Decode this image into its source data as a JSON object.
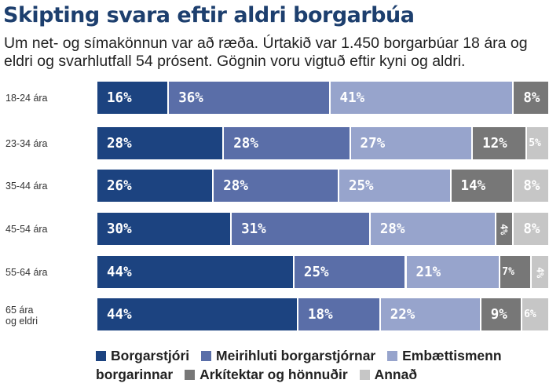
{
  "title": "Skipting svara eftir aldri borgarbúa",
  "subtitle": "Um net- og símakönnun var að ræða. Úrtakið var 1.450 borgarbúar 18 ára og eldri og svarhlutfall 54 prósent. Gögnin voru vigtuð eftir kyni og aldri.",
  "colors": {
    "Borgarstjóri": "#1c4380",
    "Meirihluti borgarstjórnar": "#5a6ea8",
    "Embættismenn borgarinnar": "#97a4cc",
    "Arkítektar og hönnuðir": "#777777",
    "Annað": "#c6c6c6"
  },
  "chart_data": {
    "type": "bar",
    "orientation": "horizontal",
    "stacked": true,
    "title": "Skipting svara eftir aldri borgarbúa",
    "categories": [
      "18-24 ára",
      "23-34 ára",
      "35-44 ára",
      "45-54 ára",
      "55-64 ára",
      "65 ára og eldri"
    ],
    "series": [
      {
        "name": "Borgarstjóri",
        "values": [
          16,
          28,
          26,
          30,
          44,
          44
        ]
      },
      {
        "name": "Meirihluti borgarstjórnar",
        "values": [
          36,
          28,
          28,
          31,
          25,
          18
        ]
      },
      {
        "name": "Embættismenn borgarinnar",
        "values": [
          41,
          27,
          25,
          28,
          21,
          22
        ]
      },
      {
        "name": "Arkítektar og hönnuðir",
        "values": [
          8,
          12,
          14,
          4,
          7,
          9
        ]
      },
      {
        "name": "Annað",
        "values": [
          null,
          5,
          8,
          8,
          4,
          6
        ]
      }
    ],
    "labels": [
      [
        "16%",
        "36%",
        "41%",
        "8%",
        ""
      ],
      [
        "28%",
        "28%",
        "27%",
        "12%",
        "5%"
      ],
      [
        "26%",
        "28%",
        "25%",
        "14%",
        "8%"
      ],
      [
        "30%",
        "31%",
        "28%",
        "4%",
        "8%"
      ],
      [
        "44%",
        "25%",
        "21%",
        "7%",
        "4%"
      ],
      [
        "44%",
        "18%",
        "22%",
        "9%",
        "6%"
      ]
    ],
    "legend_position": "bottom",
    "grid": false
  }
}
